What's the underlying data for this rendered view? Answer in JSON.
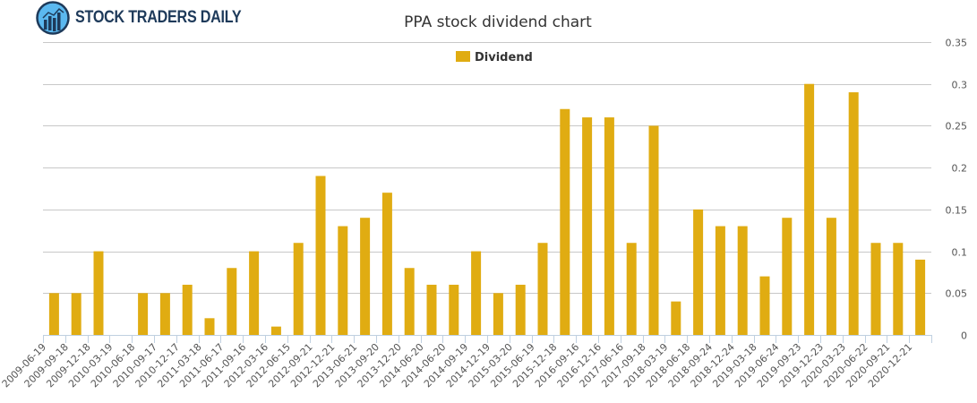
{
  "logo": {
    "text": "STOCK TRADERS DAILY"
  },
  "chart_data": {
    "type": "bar",
    "title": "PPA stock dividend chart",
    "xlabel": "",
    "ylabel": "",
    "ylim": [
      0,
      0.35
    ],
    "yticks": [
      0,
      0.05,
      0.1,
      0.15,
      0.2,
      0.25,
      0.3,
      0.35
    ],
    "ytick_labels": [
      "0",
      "0.05",
      "0.1",
      "0.15",
      "0.2",
      "0.25",
      "0.3",
      "0.35"
    ],
    "grid": true,
    "legend": {
      "position": "top-center",
      "entries": [
        "Dividend"
      ]
    },
    "series_color": "#e0ac12",
    "categories": [
      "2009-06-19",
      "2009-09-18",
      "2009-12-18",
      "2010-03-19",
      "2010-06-18",
      "2010-09-17",
      "2010-12-17",
      "2011-03-18",
      "2011-06-17",
      "2011-09-16",
      "2012-03-16",
      "2012-06-15",
      "2012-09-21",
      "2012-12-21",
      "2013-06-21",
      "2013-09-20",
      "2013-12-20",
      "2014-06-20",
      "2014-06-20",
      "2014-09-19",
      "2014-12-19",
      "2015-03-20",
      "2015-06-19",
      "2015-12-18",
      "2016-09-16",
      "2016-12-16",
      "2017-06-16",
      "2017-09-18",
      "2018-03-19",
      "2018-06-18",
      "2018-09-24",
      "2018-12-24",
      "2019-03-18",
      "2019-06-24",
      "2019-09-23",
      "2019-12-23",
      "2020-03-23",
      "2020-06-22",
      "2020-09-21",
      "2020-12-21"
    ],
    "series": [
      {
        "name": "Dividend",
        "values": [
          0.05,
          0.05,
          0.1,
          0,
          0.05,
          0.05,
          0.06,
          0.02,
          0.08,
          0.1,
          0.01,
          0.11,
          0.19,
          0.13,
          0.14,
          0.17,
          0.08,
          0.06,
          0.06,
          0.1,
          0.05,
          0.06,
          0.11,
          0.27,
          0.26,
          0.26,
          0.11,
          0.25,
          0.04,
          0.15,
          0.13,
          0.13,
          0.07,
          0.14,
          0.3,
          0.14,
          0.29,
          0.11,
          0.11,
          0.09
        ]
      }
    ]
  }
}
